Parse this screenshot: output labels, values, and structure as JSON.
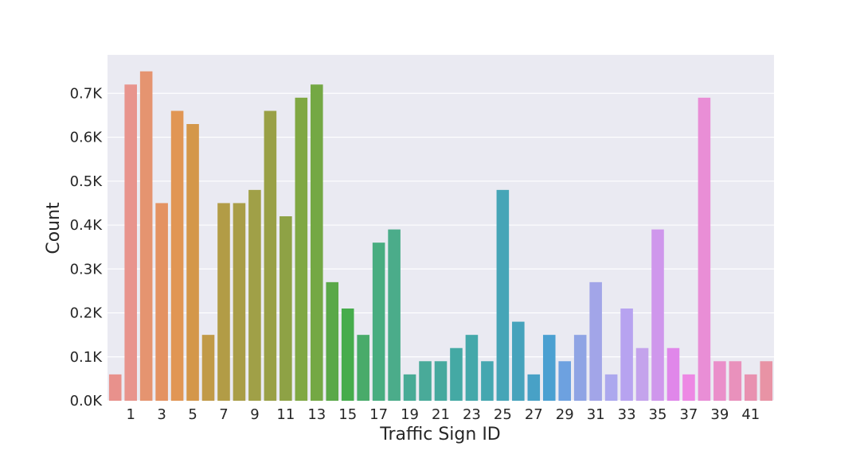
{
  "chart_data": {
    "type": "bar",
    "title": "",
    "xlabel": "Traffic Sign ID",
    "ylabel": "Count",
    "categories": [
      "0",
      "1",
      "2",
      "3",
      "4",
      "5",
      "6",
      "7",
      "8",
      "9",
      "10",
      "11",
      "12",
      "13",
      "14",
      "15",
      "16",
      "17",
      "18",
      "19",
      "20",
      "21",
      "22",
      "23",
      "24",
      "25",
      "26",
      "27",
      "28",
      "29",
      "30",
      "31",
      "32",
      "33",
      "34",
      "35",
      "36",
      "37",
      "38",
      "39",
      "40",
      "41",
      "42"
    ],
    "values": [
      60,
      720,
      750,
      450,
      660,
      630,
      150,
      450,
      450,
      480,
      660,
      420,
      690,
      720,
      270,
      210,
      150,
      360,
      390,
      60,
      90,
      90,
      120,
      150,
      90,
      480,
      180,
      60,
      150,
      90,
      150,
      270,
      60,
      210,
      120,
      390,
      120,
      60,
      690,
      90,
      90,
      60,
      90
    ],
    "x_tick_labels": [
      "1",
      "3",
      "5",
      "7",
      "9",
      "11",
      "13",
      "15",
      "17",
      "19",
      "21",
      "23",
      "25",
      "27",
      "29",
      "31",
      "33",
      "35",
      "37",
      "39",
      "41"
    ],
    "y_ticks": [
      0,
      100,
      200,
      300,
      400,
      500,
      600,
      700
    ],
    "y_tick_labels": [
      "0.0K",
      "0.1K",
      "0.2K",
      "0.3K",
      "0.4K",
      "0.5K",
      "0.6K",
      "0.7K"
    ],
    "ylim": [
      0,
      787.5
    ],
    "grid": true,
    "background_color": "#eaeaf2",
    "grid_color": "#ffffff",
    "bar_colors": [
      "#e8918c",
      "#e8948d",
      "#e59470",
      "#e49262",
      "#e19654",
      "#d4974a",
      "#c19a47",
      "#b29c46",
      "#a99d47",
      "#a0a047",
      "#99a046",
      "#8ea245",
      "#80a843",
      "#74a844",
      "#5aa848",
      "#46ac4c",
      "#49ab6a",
      "#48ad80",
      "#4bac8a",
      "#48ab96",
      "#49aa99",
      "#46a99e",
      "#44a9a4",
      "#44a8aa",
      "#45a7b0",
      "#46a5b7",
      "#46a3bc",
      "#48a1c6",
      "#4ba0d1",
      "#6da1e0",
      "#8fa4e4",
      "#a2a5e8",
      "#aca8ee",
      "#b7a3f0",
      "#c4a3ec",
      "#cf97ec",
      "#e087ea",
      "#ed88e4",
      "#e98ed6",
      "#ea8fca",
      "#e991bc",
      "#e891b0",
      "#e893a5"
    ]
  }
}
